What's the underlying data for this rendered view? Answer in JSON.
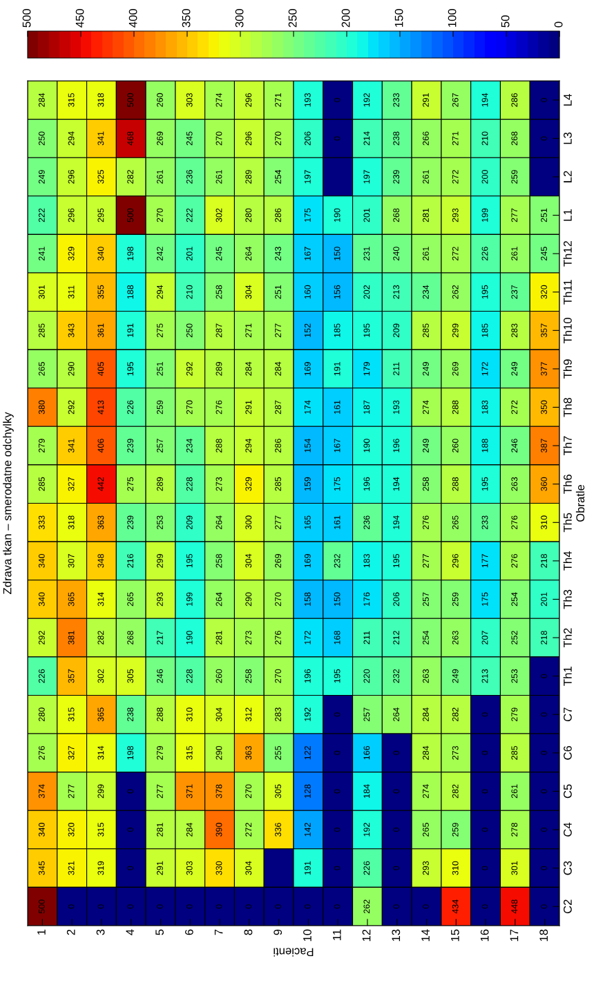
{
  "chart_data": {
    "type": "heatmap",
    "title": "Zdrava tkan – smerodatne odchylky",
    "xlabel": "Pacienti",
    "ylabel": "Obratle",
    "categories": [
      "1",
      "2",
      "3",
      "4",
      "5",
      "6",
      "7",
      "8",
      "9",
      "10",
      "11",
      "12",
      "13",
      "14",
      "15",
      "16",
      "17",
      "18"
    ],
    "y_categories": [
      "L4",
      "L3",
      "L2",
      "L1",
      "Th12",
      "Th11",
      "Th10",
      "Th9",
      "Th8",
      "Th7",
      "Th6",
      "Th5",
      "Th4",
      "Th3",
      "Th2",
      "Th1",
      "C7",
      "C6",
      "C5",
      "C4",
      "C3",
      "C2"
    ],
    "cells": [
      [
        284,
        315,
        318,
        500,
        260,
        303,
        274,
        296,
        271,
        193,
        0,
        192,
        233,
        291,
        267,
        194,
        286,
        0
      ],
      [
        250,
        294,
        341,
        468,
        269,
        245,
        270,
        296,
        270,
        206,
        0,
        214,
        238,
        266,
        271,
        210,
        268,
        0
      ],
      [
        249,
        296,
        325,
        282,
        261,
        236,
        261,
        289,
        254,
        197,
        0,
        197,
        239,
        261,
        272,
        200,
        259,
        0
      ],
      [
        222,
        296,
        295,
        500,
        270,
        222,
        302,
        280,
        286,
        175,
        190,
        201,
        268,
        281,
        293,
        199,
        277,
        251
      ],
      [
        241,
        329,
        340,
        198,
        242,
        201,
        245,
        264,
        243,
        167,
        150,
        231,
        240,
        261,
        272,
        226,
        261,
        245
      ],
      [
        301,
        311,
        355,
        188,
        294,
        210,
        258,
        304,
        251,
        160,
        156,
        202,
        213,
        234,
        262,
        195,
        237,
        320
      ],
      [
        285,
        343,
        361,
        191,
        275,
        250,
        287,
        271,
        277,
        152,
        185,
        195,
        209,
        285,
        299,
        185,
        283,
        357
      ],
      [
        265,
        290,
        405,
        195,
        251,
        292,
        289,
        284,
        284,
        169,
        191,
        179,
        211,
        249,
        269,
        172,
        249,
        377
      ],
      [
        380,
        292,
        413,
        226,
        259,
        270,
        276,
        291,
        287,
        174,
        161,
        187,
        193,
        274,
        288,
        183,
        272,
        350
      ],
      [
        279,
        341,
        406,
        239,
        257,
        234,
        288,
        294,
        286,
        154,
        167,
        190,
        196,
        249,
        260,
        188,
        246,
        387
      ],
      [
        285,
        327,
        442,
        275,
        289,
        228,
        273,
        329,
        285,
        159,
        175,
        196,
        194,
        258,
        288,
        195,
        263,
        360
      ],
      [
        333,
        318,
        363,
        239,
        253,
        209,
        264,
        300,
        277,
        165,
        161,
        236,
        194,
        276,
        265,
        233,
        276,
        310
      ],
      [
        340,
        307,
        348,
        216,
        299,
        195,
        258,
        304,
        269,
        169,
        232,
        183,
        195,
        277,
        296,
        177,
        276,
        218
      ],
      [
        340,
        365,
        314,
        265,
        293,
        199,
        264,
        290,
        270,
        158,
        150,
        176,
        206,
        257,
        259,
        175,
        254,
        201
      ],
      [
        292,
        381,
        282,
        268,
        217,
        190,
        281,
        273,
        276,
        172,
        168,
        211,
        212,
        254,
        263,
        207,
        252,
        218
      ],
      [
        226,
        357,
        302,
        305,
        246,
        228,
        260,
        258,
        270,
        196,
        195,
        220,
        232,
        263,
        249,
        213,
        253,
        0
      ],
      [
        280,
        315,
        365,
        238,
        288,
        310,
        304,
        312,
        283,
        192,
        0,
        257,
        264,
        284,
        282,
        0,
        279,
        0
      ],
      [
        276,
        327,
        314,
        198,
        279,
        315,
        290,
        363,
        255,
        122,
        0,
        166,
        0,
        284,
        273,
        0,
        285,
        0
      ],
      [
        374,
        277,
        299,
        0,
        277,
        371,
        378,
        270,
        305,
        128,
        0,
        184,
        0,
        274,
        282,
        0,
        261,
        0
      ],
      [
        340,
        320,
        315,
        0,
        281,
        284,
        390,
        272,
        336,
        142,
        0,
        192,
        0,
        265,
        259,
        0,
        278,
        0
      ],
      [
        345,
        321,
        319,
        0,
        291,
        303,
        330,
        304,
        0,
        191,
        0,
        226,
        0,
        293,
        310,
        0,
        301,
        0
      ],
      [
        500,
        0,
        0,
        0,
        0,
        0,
        0,
        0,
        0,
        0,
        0,
        262,
        0,
        0,
        434,
        0,
        448,
        0
      ]
    ],
    "cell_labels": [
      [
        "284",
        "315",
        "318",
        "500",
        "260",
        "303",
        "274",
        "296",
        "271",
        "193",
        "0",
        "192",
        "233",
        "291",
        "267",
        "194",
        "286",
        "0"
      ],
      [
        "250",
        "294",
        "341",
        "468",
        "269",
        "245",
        "270",
        "296",
        "270",
        "206",
        "0",
        "214",
        "238",
        "266",
        "271",
        "210",
        "268",
        "0"
      ],
      [
        "249",
        "296",
        "325",
        "282",
        "261",
        "236",
        "261",
        "289",
        "254",
        "197",
        null,
        "197",
        "239",
        "261",
        "272",
        "200",
        "259",
        null
      ],
      [
        "222",
        "296",
        "295",
        "500",
        "270",
        "222",
        "302",
        "280",
        "286",
        "175",
        "190",
        "201",
        "268",
        "281",
        "293",
        "199",
        "277",
        "251"
      ],
      [
        "241",
        "329",
        "340",
        "198",
        "242",
        "201",
        "245",
        "264",
        "243",
        "167",
        "150",
        "231",
        "240",
        "261",
        "272",
        "226",
        "261",
        "245"
      ],
      [
        "301",
        "311",
        "355",
        "188",
        "294",
        "210",
        "258",
        "304",
        "251",
        "160",
        "156",
        "202",
        "213",
        "234",
        "262",
        "195",
        "237",
        "320"
      ],
      [
        "285",
        "343",
        "361",
        "191",
        "275",
        "250",
        "287",
        "271",
        "277",
        "152",
        "185",
        "195",
        "209",
        "285",
        "299",
        "185",
        "283",
        "357"
      ],
      [
        "265",
        "290",
        "405",
        "195",
        "251",
        "292",
        "289",
        "284",
        "284",
        "169",
        "191",
        "179",
        "211",
        "249",
        "269",
        "172",
        "249",
        "377"
      ],
      [
        "380",
        "292",
        "413",
        "226",
        "259",
        "270",
        "276",
        "291",
        "287",
        "174",
        "161",
        "187",
        "193",
        "274",
        "288",
        "183",
        "272",
        "350"
      ],
      [
        "279",
        "341",
        "406",
        "239",
        "257",
        "234",
        "288",
        "294",
        "286",
        "154",
        "167",
        "190",
        "196",
        "249",
        "260",
        "188",
        "246",
        "387"
      ],
      [
        "285",
        "327",
        "442",
        "275",
        "289",
        "228",
        "273",
        "329",
        "285",
        "159",
        "175",
        "196",
        "194",
        "258",
        "288",
        "195",
        "263",
        "360"
      ],
      [
        "333",
        "318",
        "363",
        "239",
        "253",
        "209",
        "264",
        "300",
        "277",
        "165",
        "161",
        "236",
        "194",
        "276",
        "265",
        "233",
        "276",
        "310"
      ],
      [
        "340",
        "307",
        "348",
        "216",
        "299",
        "195",
        "258",
        "304",
        "269",
        "169",
        "232",
        "183",
        "195",
        "277",
        "296",
        "177",
        "276",
        "218"
      ],
      [
        "340",
        "365",
        "314",
        "265",
        "293",
        "199",
        "264",
        "290",
        "270",
        "158",
        "150",
        "176",
        "206",
        "257",
        "259",
        "175",
        "254",
        "201"
      ],
      [
        "292",
        "381",
        "282",
        "268",
        "217",
        "190",
        "281",
        "273",
        "276",
        "172",
        "168",
        "211",
        "212",
        "254",
        "263",
        "207",
        "252",
        "218"
      ],
      [
        "226",
        "357",
        "302",
        "305",
        "246",
        "228",
        "260",
        "258",
        "270",
        "196",
        "195",
        "220",
        "232",
        "263",
        "249",
        "213",
        "253",
        "0"
      ],
      [
        "280",
        "315",
        "365",
        "238",
        "288",
        "310",
        "304",
        "312",
        "283",
        "192",
        "0",
        "257",
        "264",
        "284",
        "282",
        "0",
        "279",
        "0"
      ],
      [
        "276",
        "327",
        "314",
        "198",
        "279",
        "315",
        "290",
        "363",
        "255",
        "122",
        "0",
        "166",
        "0",
        "284",
        "273",
        "0",
        "285",
        "0"
      ],
      [
        "374",
        "277",
        "299",
        "0",
        "277",
        "371",
        "378",
        "270",
        "305",
        "128",
        "0",
        "184",
        "0",
        "274",
        "282",
        "0",
        "261",
        "0"
      ],
      [
        "340",
        "320",
        "315",
        "0",
        "281",
        "284",
        "390",
        "272",
        "336",
        "142",
        "0",
        "192",
        "0",
        "265",
        "259",
        "0",
        "278",
        "0"
      ],
      [
        "345",
        "321",
        "319",
        "0",
        "291",
        "303",
        "330",
        "304",
        null,
        "191",
        "0",
        "226",
        "0",
        "293",
        "310",
        "0",
        "301",
        "0"
      ],
      [
        "500",
        "0",
        "0",
        "0",
        "0",
        "0",
        "0",
        "0",
        "0",
        "0",
        "0",
        "262",
        "0",
        "0",
        "434",
        "0",
        "448",
        "0"
      ]
    ],
    "clim": [
      0,
      500
    ],
    "cticks": [
      0,
      50,
      100,
      150,
      200,
      250,
      300,
      350,
      400,
      450,
      500
    ]
  }
}
